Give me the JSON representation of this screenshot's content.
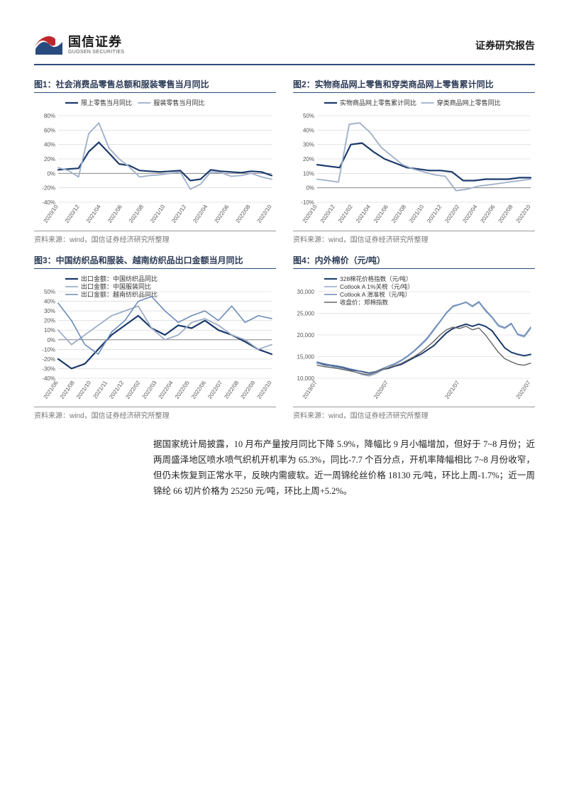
{
  "header": {
    "logo_cn": "国信证券",
    "logo_en": "GUOSEN SECURITIES",
    "report_type": "证券研究报告"
  },
  "source_text": "资料来源：wind，国信证券经济研究所整理",
  "body_paragraph": "据国家统计局披露，10 月布产量按月同比下降 5.9%，降幅比 9 月小幅增加，但好于 7~8 月份；近两周盛泽地区喷水喷气织机开机率为 65.3%，同比-7.7 个百分点，开机率降幅相比 7~8 月份收窄，但仍未恢复到正常水平，反映内需疲软。近一周锦纶丝价格 18130 元/吨，环比上周-1.7%；近一周锦纶 66 切片价格为 25250 元/吨，环比上周+5.2%。",
  "charts": {
    "c1": {
      "type": "line",
      "title": "图1：社会消费品零售总额和服装零售当月同比",
      "xlabels": [
        "2020/10",
        "2020/12",
        "2021/04",
        "2021/06",
        "2021/08",
        "2021/10",
        "2021/12",
        "2022/04",
        "2022/06",
        "2022/08",
        "2022/10"
      ],
      "ytick_min": -40,
      "ytick_max": 80,
      "ytick_step": 20,
      "x_label_fontsize": 8,
      "y_label_fontsize": 8,
      "legend_fontsize": 9,
      "grid_color": "#d0d0d0",
      "bg_color": "#ffffff",
      "axis_color": "#888888",
      "series": [
        {
          "name": "限上零售当月同比",
          "color": "#1b3a6b",
          "width": 2.2,
          "values": [
            5,
            6,
            7,
            30,
            43,
            28,
            13,
            11,
            4,
            3,
            2,
            3,
            4,
            -10,
            -8,
            5,
            3,
            2,
            1,
            3,
            2,
            -3
          ]
        },
        {
          "name": "服装零售当月同比",
          "color": "#9eaec8",
          "width": 1.8,
          "values": [
            8,
            4,
            -5,
            55,
            70,
            35,
            20,
            9,
            -5,
            -3,
            -2,
            0,
            2,
            -22,
            -15,
            2,
            1,
            -4,
            -3,
            0,
            -5,
            -8
          ]
        }
      ]
    },
    "c2": {
      "type": "line",
      "title": "图2：实物商品网上零售和穿类商品网上零售累计同比",
      "xlabels": [
        "2020/10",
        "2020/12",
        "2021/02",
        "2021/04",
        "2021/06",
        "2021/08",
        "2021/10",
        "2021/12",
        "2022/02",
        "2022/04",
        "2022/06",
        "2022/08",
        "2022/10"
      ],
      "ytick_min": -10,
      "ytick_max": 50,
      "ytick_step": 10,
      "x_label_fontsize": 8,
      "y_label_fontsize": 8,
      "legend_fontsize": 9,
      "grid_color": "#d0d0d0",
      "bg_color": "#ffffff",
      "axis_color": "#888888",
      "series": [
        {
          "name": "实物商品网上零售累计同比",
          "color": "#1b3a6b",
          "width": 2.2,
          "values": [
            16,
            15,
            14,
            30,
            31,
            25,
            20,
            17,
            14,
            13,
            12,
            12,
            11,
            5,
            5,
            6,
            6,
            6,
            7,
            7
          ]
        },
        {
          "name": "穿类商品网上零售同比",
          "color": "#9eaec8",
          "width": 1.8,
          "values": [
            6,
            5,
            4,
            44,
            45,
            38,
            28,
            22,
            16,
            13,
            11,
            9,
            8,
            -2,
            -1,
            1,
            2,
            3,
            4,
            5,
            6
          ]
        }
      ]
    },
    "c3": {
      "type": "line",
      "title": "图3：中国纺织品和服装、越南纺织品出口金额当月同比",
      "xlabels": [
        "2021/06",
        "2021/08",
        "2021/10",
        "2021/11",
        "2021/12",
        "2022/02",
        "2022/03",
        "2022/04",
        "2022/05",
        "2022/06",
        "2022/07",
        "2022/08",
        "2022/09",
        "2022/10"
      ],
      "ytick_min": -40,
      "ytick_max": 50,
      "ytick_step": 10,
      "x_label_fontsize": 8,
      "y_label_fontsize": 8,
      "legend_fontsize": 9,
      "grid_color": "#d0d0d0",
      "bg_color": "#ffffff",
      "axis_color": "#888888",
      "series": [
        {
          "name": "出口金额：中国纺织品同比",
          "color": "#1b3a6b",
          "width": 2.2,
          "values": [
            -20,
            -30,
            -25,
            -10,
            5,
            15,
            25,
            12,
            5,
            15,
            12,
            20,
            10,
            5,
            -2,
            -10,
            -15
          ]
        },
        {
          "name": "出口金额：中国服装同比",
          "color": "#9eaec8",
          "width": 1.8,
          "values": [
            10,
            -5,
            5,
            15,
            25,
            30,
            35,
            12,
            0,
            5,
            18,
            22,
            15,
            5,
            0,
            -10,
            -5
          ]
        },
        {
          "name": "出口金额：越南纺织品同比",
          "color": "#6d8db8",
          "width": 1.6,
          "values": [
            38,
            20,
            -5,
            -15,
            8,
            20,
            40,
            45,
            30,
            18,
            25,
            30,
            20,
            35,
            18,
            25,
            22
          ]
        }
      ]
    },
    "c4": {
      "type": "line",
      "title": "图4：内外棉价（元/吨）",
      "xlabels": [
        "2019/07",
        "2020/07",
        "2021/07",
        "2022/07"
      ],
      "ytick_min": 10000,
      "ytick_max": 30000,
      "ytick_step": 5000,
      "x_label_fontsize": 8,
      "y_label_fontsize": 8,
      "legend_fontsize": 8.5,
      "grid_color": "#d0d0d0",
      "bg_color": "#ffffff",
      "axis_color": "#888888",
      "dense": true,
      "series": [
        {
          "name": "328棉花价格指数（元/吨）",
          "color": "#1b3a6b",
          "width": 2.0,
          "values": [
            13500,
            13200,
            13000,
            12800,
            12500,
            12000,
            11800,
            11500,
            11200,
            11500,
            12000,
            12300,
            12800,
            13200,
            14000,
            14800,
            15500,
            16500,
            17500,
            19000,
            20500,
            21500,
            22000,
            22500,
            22000,
            22500,
            22000,
            21000,
            19000,
            17000,
            16000,
            15500,
            15200,
            15500
          ]
        },
        {
          "name": "Cotlook A 1%关税（元/吨）",
          "color": "#8fa8cc",
          "width": 1.4,
          "values": [
            13500,
            13000,
            12800,
            12500,
            12200,
            11800,
            11400,
            10800,
            10500,
            11000,
            11800,
            12500,
            13200,
            14000,
            15000,
            16200,
            17500,
            19000,
            21000,
            23000,
            25000,
            26500,
            27000,
            27500,
            26500,
            27500,
            25500,
            24000,
            22000,
            21500,
            22500,
            20000,
            19500,
            21500
          ]
        },
        {
          "name": "Cotlook A 滑准税（元/吨）",
          "color": "#6a88b5",
          "width": 1.4,
          "values": [
            13800,
            13400,
            13100,
            12900,
            12600,
            12200,
            11900,
            11400,
            11100,
            11500,
            12200,
            12800,
            13400,
            14200,
            15200,
            16400,
            17800,
            19300,
            21300,
            23200,
            25200,
            26700,
            27100,
            27600,
            26700,
            27700,
            25800,
            24200,
            22300,
            21700,
            22700,
            20200,
            19800,
            21800
          ]
        },
        {
          "name": "收盘价：郑棉指数",
          "color": "#666666",
          "width": 1.4,
          "values": [
            13000,
            12700,
            12500,
            12300,
            12000,
            11700,
            11400,
            11000,
            10800,
            11300,
            12000,
            12400,
            12900,
            13400,
            14200,
            15000,
            16000,
            17200,
            18500,
            20000,
            21200,
            21800,
            21500,
            22000,
            21200,
            21600,
            20000,
            18000,
            16000,
            14500,
            13800,
            13200,
            13000,
            13500
          ]
        }
      ]
    }
  }
}
